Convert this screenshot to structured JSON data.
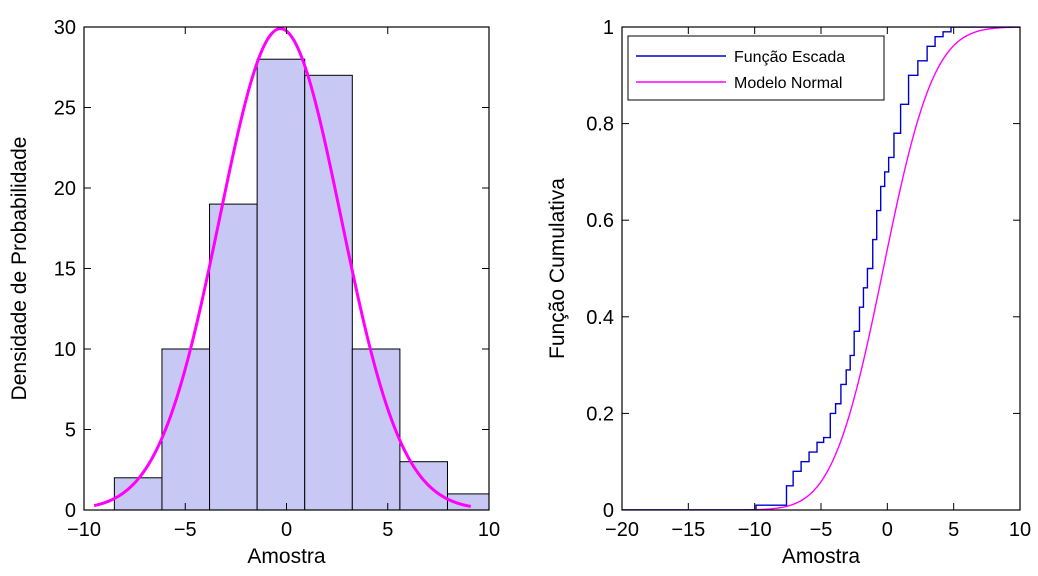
{
  "chart_data": [
    {
      "type": "bar",
      "subtype": "histogram_with_fitted_curve",
      "title": "",
      "xlabel": "Amostra",
      "ylabel": "Densidade de Probabilidade",
      "xlim": [
        -10,
        10
      ],
      "ylim": [
        0,
        30
      ],
      "xticks": [
        -10,
        -5,
        0,
        5,
        10
      ],
      "yticks": [
        0,
        5,
        10,
        15,
        20,
        25,
        30
      ],
      "xtick_labels": [
        "−10",
        "−5",
        "0",
        "5",
        "10"
      ],
      "ytick_labels": [
        "0",
        "5",
        "10",
        "15",
        "20",
        "25",
        "30"
      ],
      "bin_edges": [
        -8.5,
        -6.15,
        -3.8,
        -1.45,
        0.9,
        3.25,
        5.6,
        7.95,
        10.3
      ],
      "values": [
        2,
        10,
        19,
        28,
        27,
        10,
        3,
        1
      ],
      "bar_color": "#c8c8f5",
      "curve": {
        "mean": -0.3,
        "std": 3.0,
        "peak": 29.9,
        "x_range": [
          -9.5,
          9.1
        ],
        "color": "#ff00ff"
      },
      "grid": false
    },
    {
      "type": "line",
      "title": "",
      "xlabel": "Amostra",
      "ylabel": "Função Cumulativa",
      "xlim": [
        -20,
        10
      ],
      "ylim": [
        0,
        1
      ],
      "xticks": [
        -20,
        -15,
        -10,
        -5,
        0,
        5,
        10
      ],
      "yticks": [
        0,
        0.2,
        0.4,
        0.6,
        0.8,
        1
      ],
      "xtick_labels": [
        "−20",
        "−15",
        "−10",
        "−5",
        "0",
        "5",
        "10"
      ],
      "ytick_labels": [
        "0",
        "0.2",
        "0.4",
        "0.6",
        "0.8",
        "1"
      ],
      "legend": {
        "position": "top-left",
        "entries": [
          "Função Escada",
          "Modelo Normal"
        ]
      },
      "series": [
        {
          "name": "Função Escada",
          "step": true,
          "color": "#0000cc",
          "x": [
            -20,
            -9.9,
            -7.6,
            -7.1,
            -6.5,
            -5.9,
            -5.3,
            -4.8,
            -4.3,
            -3.9,
            -3.5,
            -3.1,
            -2.8,
            -2.5,
            -2.1,
            -1.8,
            -1.5,
            -1.1,
            -0.8,
            -0.5,
            -0.2,
            0.1,
            0.5,
            1.0,
            1.6,
            2.3,
            3.0,
            3.6,
            4.2,
            4.8,
            5.5,
            10
          ],
          "y": [
            0,
            0.01,
            0.05,
            0.08,
            0.1,
            0.12,
            0.14,
            0.15,
            0.2,
            0.22,
            0.26,
            0.29,
            0.32,
            0.37,
            0.42,
            0.46,
            0.5,
            0.56,
            0.62,
            0.67,
            0.7,
            0.73,
            0.78,
            0.84,
            0.9,
            0.93,
            0.96,
            0.98,
            0.99,
            1.0,
            1.0,
            1.0
          ]
        },
        {
          "name": "Modelo Normal",
          "color": "#ff00ff",
          "distribution": {
            "mean": -0.3,
            "std": 3.0
          }
        }
      ],
      "grid": false
    }
  ]
}
